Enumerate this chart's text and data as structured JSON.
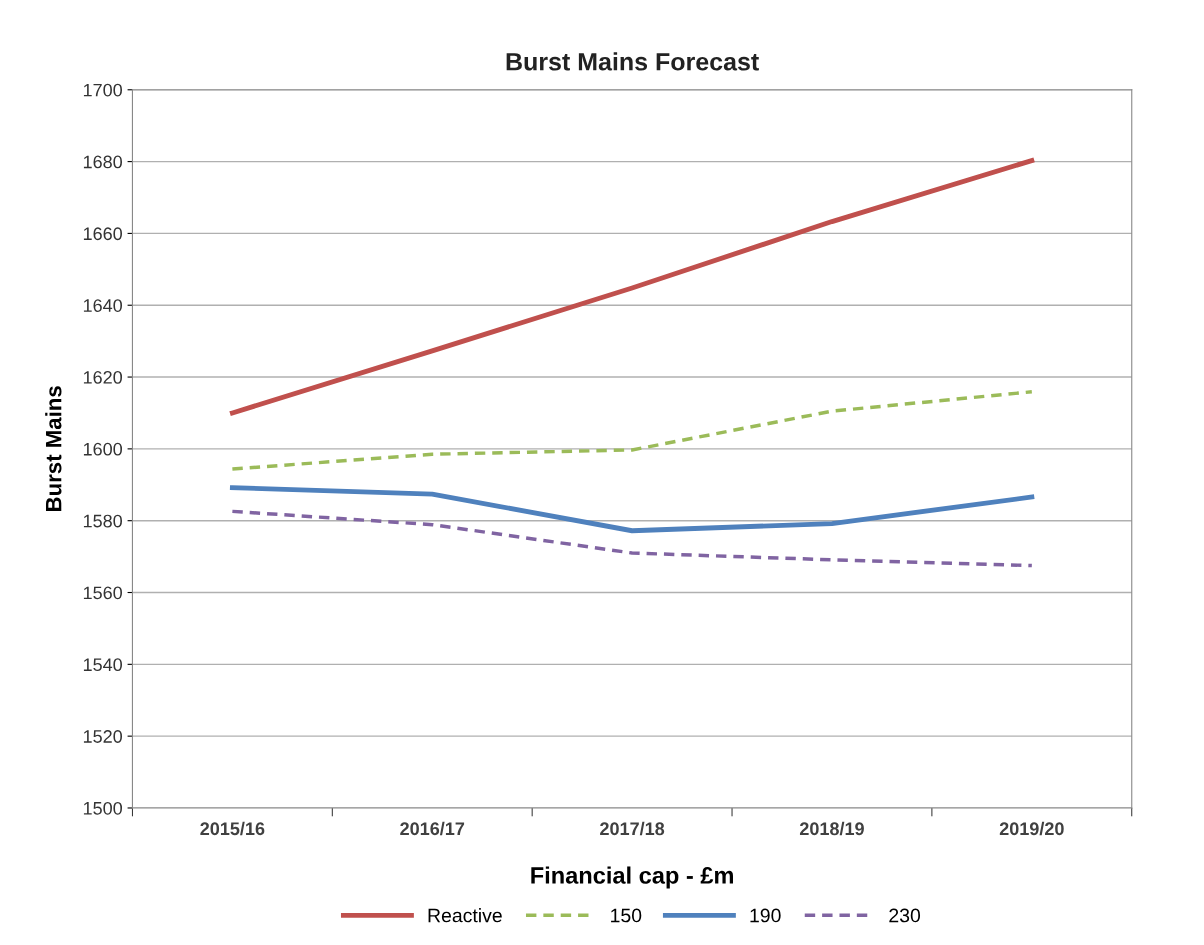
{
  "chart_data": {
    "type": "line",
    "title": "Burst Mains Forecast",
    "xlabel": "Financial cap - £m",
    "ylabel": "Burst Mains",
    "categories": [
      "2015/16",
      "2016/17",
      "2017/18",
      "2018/19",
      "2019/20"
    ],
    "series": [
      {
        "name": "Reactive",
        "color": "#c0504d",
        "line_style": "solid",
        "values": [
          1610,
          1627.3,
          1644.8,
          1663.3,
          1680.3
        ]
      },
      {
        "name": "150",
        "color": "#9bbb59",
        "line_style": "dashed",
        "values": [
          1594.4,
          1598.5,
          1599.7,
          1610.5,
          1615.9
        ]
      },
      {
        "name": "190",
        "color": "#4f81bd",
        "line_style": "solid",
        "values": [
          1589.2,
          1587.4,
          1577.2,
          1579.2,
          1586.6
        ]
      },
      {
        "name": "230",
        "color": "#8064a2",
        "line_style": "dashed",
        "values": [
          1582.6,
          1578.9,
          1571.0,
          1569.1,
          1567.5
        ]
      }
    ],
    "ylim": [
      1500,
      1700
    ],
    "yticks": [
      1500,
      1520,
      1540,
      1560,
      1580,
      1600,
      1620,
      1640,
      1660,
      1680,
      1700
    ],
    "grid": "y",
    "legend": "bottom",
    "marker": "none"
  }
}
